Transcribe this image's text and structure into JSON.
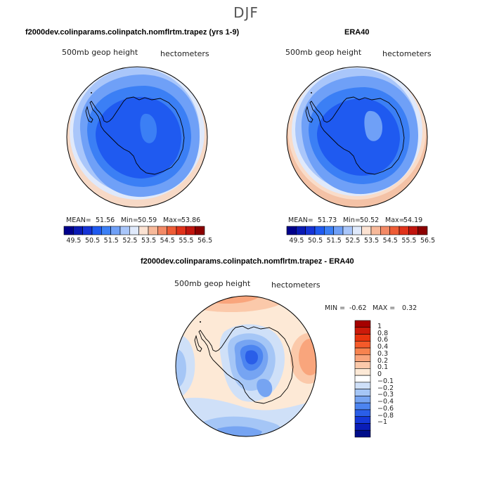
{
  "figure": {
    "suptitle": "DJF"
  },
  "chart_data": [
    {
      "type": "heatmap",
      "projection": "polar stereographic (south pole)",
      "title": "f2000dev.colinparams.colinpatch.nomflrtm.trapez (yrs 1-9)",
      "field_label": "500mb geop height",
      "units": "hectometers",
      "stats": {
        "mean_label": "MEAN=",
        "mean": "51.56",
        "min_label": "Min=",
        "min": "50.59",
        "max_label": "Max=",
        "max": "53.86"
      },
      "colorbar": {
        "ticks": [
          "49.5",
          "50.5",
          "51.5",
          "52.5",
          "53.5",
          "54.5",
          "55.5",
          "56.5"
        ],
        "colors": [
          "#00008b",
          "#0a1ab4",
          "#1533d6",
          "#1f5af0",
          "#3b7ff5",
          "#6fa0f7",
          "#a9c6fa",
          "#dfe9fb",
          "#fbe2d2",
          "#f7b99a",
          "#f38a66",
          "#ee5c36",
          "#e0321a",
          "#c0150e",
          "#8b0000"
        ]
      }
    },
    {
      "type": "heatmap",
      "projection": "polar stereographic (south pole)",
      "title": "ERA40",
      "field_label": "500mb geop height",
      "units": "hectometers",
      "stats": {
        "mean_label": "MEAN=",
        "mean": "51.73",
        "min_label": "Min=",
        "min": "50.52",
        "max_label": "Max=",
        "max": "54.19"
      },
      "colorbar": {
        "ticks": [
          "49.5",
          "50.5",
          "51.5",
          "52.5",
          "53.5",
          "54.5",
          "55.5",
          "56.5"
        ],
        "colors": [
          "#00008b",
          "#0a1ab4",
          "#1533d6",
          "#1f5af0",
          "#3b7ff5",
          "#6fa0f7",
          "#a9c6fa",
          "#dfe9fb",
          "#fbe2d2",
          "#f7b99a",
          "#f38a66",
          "#ee5c36",
          "#e0321a",
          "#c0150e",
          "#8b0000"
        ]
      }
    },
    {
      "type": "heatmap",
      "projection": "polar stereographic (south pole)",
      "title": "f2000dev.colinparams.colinpatch.nomflrtm.trapez - ERA40",
      "field_label": "500mb geop height",
      "units": "hectometers",
      "stats": {
        "min_label": "MIN =",
        "min": "-0.62",
        "max_label": "MAX =",
        "max": "0.32"
      },
      "colorbar": {
        "orientation": "vertical",
        "ticks": [
          "1",
          "0.8",
          "0.6",
          "0.4",
          "0.3",
          "0.2",
          "0.1",
          "0",
          "−0.1",
          "−0.2",
          "−0.3",
          "−0.4",
          "−0.6",
          "−0.8",
          "−1"
        ],
        "colors": [
          "#a50000",
          "#cc1a0a",
          "#e8340e",
          "#f55a2a",
          "#f7834f",
          "#f9a57c",
          "#fbc9aa",
          "#fde9d6",
          "#ffffff",
          "#cfe0f8",
          "#a5c6f6",
          "#76a4f2",
          "#4c84f0",
          "#2a5ee8",
          "#1538d8",
          "#0a1db8",
          "#000d8a"
        ]
      }
    }
  ]
}
